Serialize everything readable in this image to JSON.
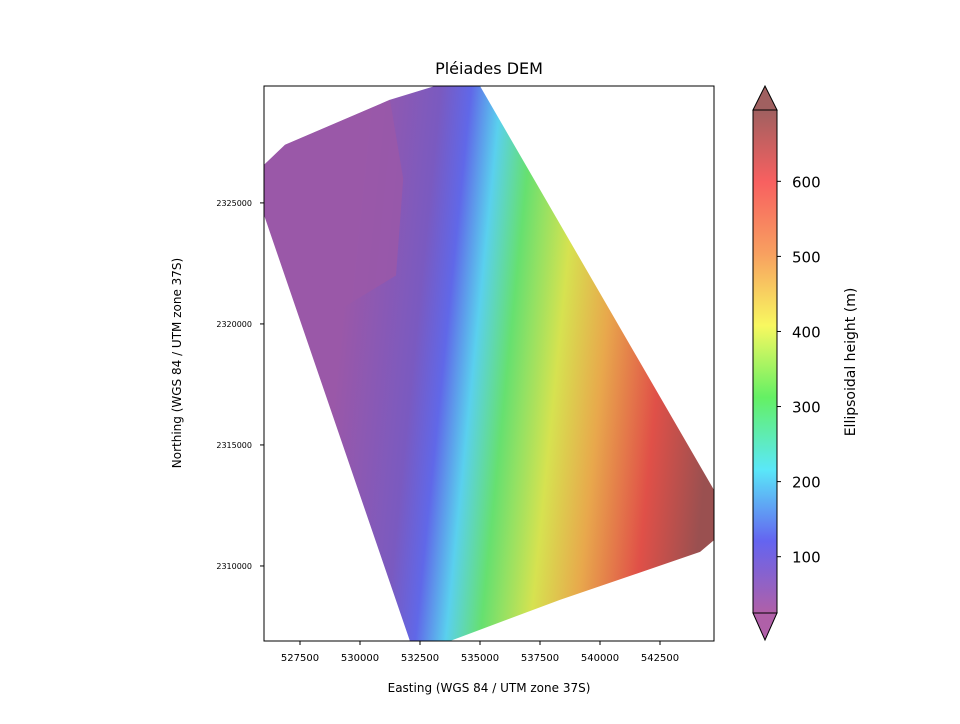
{
  "chart_data": {
    "type": "heatmap",
    "title": "Pléiades DEM",
    "xlabel": "Easting (WGS 84 / UTM zone 37S)",
    "ylabel": "Northing (WGS 84 / UTM zone 37S)",
    "xlim": [
      526000,
      544750
    ],
    "ylim": [
      2306900,
      2329830
    ],
    "xticks": [
      527500,
      530000,
      532500,
      535000,
      537500,
      540000,
      542500
    ],
    "yticks": [
      2310000,
      2315000,
      2320000,
      2325000
    ],
    "footprint": [
      [
        526000,
        2326570
      ],
      [
        526875,
        2327400
      ],
      [
        531250,
        2329260
      ],
      [
        533125,
        2329830
      ],
      [
        535000,
        2329830
      ],
      [
        544750,
        2313140
      ],
      [
        544750,
        2311070
      ],
      [
        544170,
        2310580
      ],
      [
        538330,
        2308600
      ],
      [
        533750,
        2306900
      ],
      [
        532080,
        2306900
      ],
      [
        526000,
        2324500
      ]
    ],
    "colorbar": {
      "label": "Ellipsoidal height (m)",
      "range": [
        25,
        695
      ],
      "ticks": [
        100,
        200,
        300,
        400,
        500,
        600
      ],
      "extend": "both",
      "colors": [
        "#b060a8",
        "#6464f0",
        "#5ae8f8",
        "#64f064",
        "#f8f860",
        "#f8a060",
        "#f86060",
        "#a06060"
      ]
    },
    "grid": false
  }
}
